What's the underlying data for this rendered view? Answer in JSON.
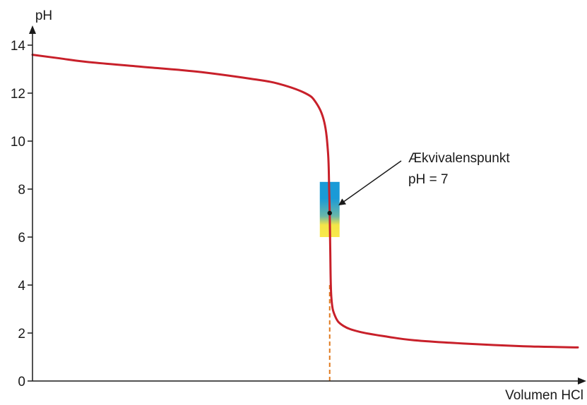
{
  "chart_data": {
    "type": "line",
    "title": "",
    "xlabel": "Volumen HCl",
    "ylabel": "pH",
    "ylim": [
      0,
      14
    ],
    "xlim": [
      0,
      100
    ],
    "yticks": [
      0,
      2,
      4,
      6,
      8,
      10,
      12,
      14
    ],
    "ytick_labels": [
      "0",
      "2",
      "4",
      "6",
      "8",
      "10",
      "12",
      "14"
    ],
    "grid": false,
    "series": [
      {
        "color": "#c8202a",
        "x": [
          0,
          5,
          10,
          20,
          30,
          40,
          45,
          50,
          52,
          53.5,
          54.2,
          54.4,
          54.5,
          54.6,
          54.8,
          55.5,
          57,
          60,
          65,
          70,
          80,
          90,
          100
        ],
        "y": [
          13.6,
          13.45,
          13.3,
          13.1,
          12.9,
          12.6,
          12.4,
          12.0,
          11.6,
          10.8,
          9.5,
          8.0,
          7.0,
          5.5,
          3.5,
          2.7,
          2.3,
          2.05,
          1.85,
          1.7,
          1.55,
          1.45,
          1.4
        ]
      }
    ],
    "annotations": [
      {
        "lines": [
          "Ækvivalenspunkt",
          "pH = 7"
        ],
        "point": {
          "x": 54.5,
          "y": 7
        }
      }
    ],
    "indicator_band": {
      "y_range": [
        6,
        8.3
      ],
      "colors": [
        "#1a9ad7",
        "#f9e94a"
      ]
    },
    "equivalence_dropline": {
      "x": 54.5,
      "y_from": 0,
      "y_to": 4,
      "color": "#e07a1e"
    }
  }
}
